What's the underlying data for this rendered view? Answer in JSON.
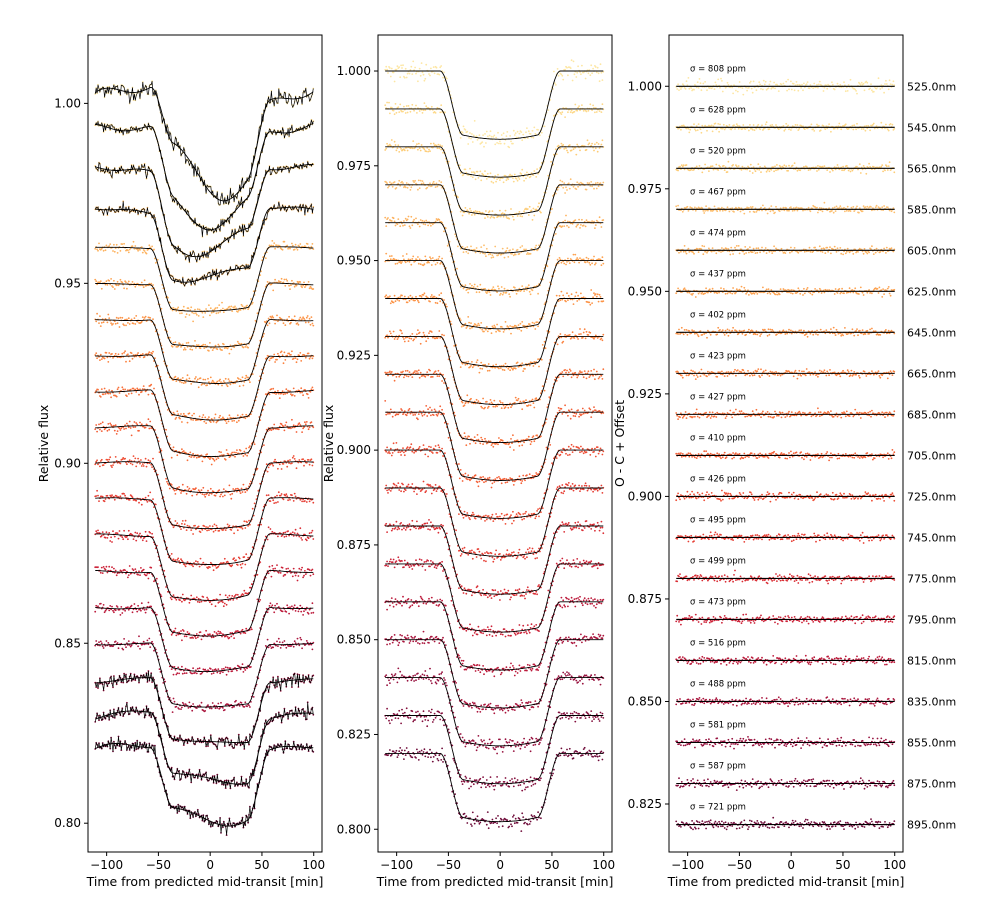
{
  "chart_data": [
    {
      "type": "scatter",
      "panel": "raw-light-curves",
      "title": "",
      "xlabel": "Time from predicted mid-transit [min]",
      "ylabel": "Relative flux",
      "xlim": [
        -118,
        108
      ],
      "ylim": [
        0.792,
        1.019
      ],
      "xticks": [
        -100,
        -50,
        0,
        50,
        100
      ],
      "xtick_labels": [
        "−100",
        "−50",
        "0",
        "50",
        "100"
      ],
      "yticks": [
        0.8,
        0.85,
        0.9,
        0.95,
        1.0
      ],
      "ytick_labels": [
        "0.80",
        "0.85",
        "0.90",
        "0.95",
        "1.00"
      ],
      "series_offsets": [
        1.0,
        0.99,
        0.98,
        0.97,
        0.96,
        0.95,
        0.94,
        0.93,
        0.92,
        0.91,
        0.9,
        0.89,
        0.88,
        0.87,
        0.86,
        0.85,
        0.84,
        0.83,
        0.82
      ],
      "transit_depth": 0.018,
      "transit_start": -58,
      "transit_end": 58,
      "ingress_duration": 22
    },
    {
      "type": "scatter",
      "panel": "detrended-light-curves",
      "title": "",
      "xlabel": "Time from predicted mid-transit [min]",
      "ylabel": "Relative flux",
      "xlim": [
        -118,
        108
      ],
      "ylim": [
        0.794,
        1.0095
      ],
      "xticks": [
        -100,
        -50,
        0,
        50,
        100
      ],
      "xtick_labels": [
        "−100",
        "−50",
        "0",
        "50",
        "100"
      ],
      "yticks": [
        0.8,
        0.825,
        0.85,
        0.875,
        0.9,
        0.925,
        0.95,
        0.975,
        1.0
      ],
      "ytick_labels": [
        "0.800",
        "0.825",
        "0.850",
        "0.875",
        "0.900",
        "0.925",
        "0.950",
        "0.975",
        "1.000"
      ],
      "series_offsets": [
        1.0,
        0.99,
        0.98,
        0.97,
        0.96,
        0.95,
        0.94,
        0.93,
        0.92,
        0.91,
        0.9,
        0.89,
        0.88,
        0.87,
        0.86,
        0.85,
        0.84,
        0.83,
        0.82
      ],
      "transit_depth": 0.018,
      "transit_start": -58,
      "transit_end": 58,
      "ingress_duration": 22
    },
    {
      "type": "scatter",
      "panel": "residuals",
      "title": "",
      "xlabel": "Time from predicted mid-transit [min]",
      "ylabel": "O - C + Offset",
      "xlim": [
        -118,
        108
      ],
      "ylim": [
        0.8133,
        1.0125
      ],
      "xticks": [
        -100,
        -50,
        0,
        50,
        100
      ],
      "xtick_labels": [
        "−100",
        "−50",
        "0",
        "50",
        "100"
      ],
      "yticks": [
        0.825,
        0.85,
        0.875,
        0.9,
        0.925,
        0.95,
        0.975,
        1.0
      ],
      "ytick_labels": [
        "0.825",
        "0.850",
        "0.875",
        "0.900",
        "0.925",
        "0.950",
        "0.975",
        "1.000"
      ],
      "series": [
        {
          "wavelength": "525.0nm",
          "sigma": "σ = 808 ppm",
          "offset": 1.0
        },
        {
          "wavelength": "545.0nm",
          "sigma": "σ = 628 ppm",
          "offset": 0.99
        },
        {
          "wavelength": "565.0nm",
          "sigma": "σ = 520 ppm",
          "offset": 0.98
        },
        {
          "wavelength": "585.0nm",
          "sigma": "σ = 467 ppm",
          "offset": 0.97
        },
        {
          "wavelength": "605.0nm",
          "sigma": "σ = 474 ppm",
          "offset": 0.96
        },
        {
          "wavelength": "625.0nm",
          "sigma": "σ = 437 ppm",
          "offset": 0.95
        },
        {
          "wavelength": "645.0nm",
          "sigma": "σ = 402 ppm",
          "offset": 0.94
        },
        {
          "wavelength": "665.0nm",
          "sigma": "σ = 423 ppm",
          "offset": 0.93
        },
        {
          "wavelength": "685.0nm",
          "sigma": "σ = 427 ppm",
          "offset": 0.92
        },
        {
          "wavelength": "705.0nm",
          "sigma": "σ = 410 ppm",
          "offset": 0.91
        },
        {
          "wavelength": "725.0nm",
          "sigma": "σ = 426 ppm",
          "offset": 0.9
        },
        {
          "wavelength": "745.0nm",
          "sigma": "σ = 495 ppm",
          "offset": 0.89
        },
        {
          "wavelength": "775.0nm",
          "sigma": "σ = 499 ppm",
          "offset": 0.88
        },
        {
          "wavelength": "795.0nm",
          "sigma": "σ = 473 ppm",
          "offset": 0.87
        },
        {
          "wavelength": "815.0nm",
          "sigma": "σ = 516 ppm",
          "offset": 0.86
        },
        {
          "wavelength": "835.0nm",
          "sigma": "σ = 488 ppm",
          "offset": 0.85
        },
        {
          "wavelength": "855.0nm",
          "sigma": "σ = 581 ppm",
          "offset": 0.84
        },
        {
          "wavelength": "875.0nm",
          "sigma": "σ = 587 ppm",
          "offset": 0.83
        },
        {
          "wavelength": "895.0nm",
          "sigma": "σ = 721 ppm",
          "offset": 0.82
        }
      ]
    }
  ],
  "colors": {
    "line": "#000000",
    "series_palette": [
      "#fde6a2",
      "#fdd98a",
      "#fdcc76",
      "#fdbf6f",
      "#fdb25e",
      "#fda351",
      "#fc9346",
      "#fb823f",
      "#f8703a",
      "#f45f36",
      "#ee4d34",
      "#e63d33",
      "#da2e35",
      "#cc2238",
      "#bc1a3b",
      "#aa153d",
      "#97113e",
      "#830e3c",
      "#6e0b39"
    ]
  }
}
